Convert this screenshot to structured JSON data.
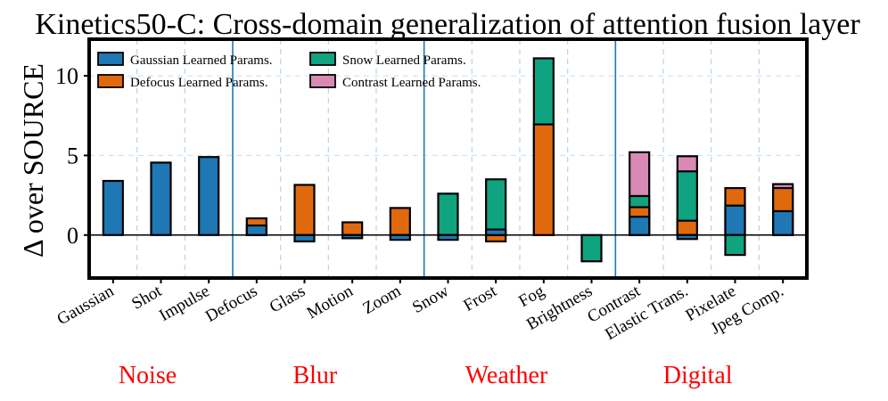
{
  "chart_data": {
    "type": "bar",
    "title": "Kinetics50-C: Cross-domain generalization of attention fusion layer",
    "ylabel": "Δ over SOURCE",
    "ylim": [
      -2.7,
      12.3
    ],
    "yticks": [
      0,
      5,
      10
    ],
    "grid": true,
    "legend_position": "top-left",
    "categories": [
      "Gaussian",
      "Shot",
      "Impulse",
      "Defocus",
      "Glass",
      "Motion",
      "Zoom",
      "Snow",
      "Frost",
      "Fog",
      "Brightness",
      "Contrast",
      "Elastic Trans.",
      "Pixelate",
      "Jpeg Comp."
    ],
    "series": [
      {
        "name": "Gaussian Learned Params.",
        "color": "#1f77b4",
        "values": [
          3.4,
          4.55,
          4.9,
          0.6,
          -0.4,
          -0.2,
          -0.3,
          -0.3,
          0.35,
          null,
          null,
          1.15,
          -0.25,
          1.85,
          1.5
        ]
      },
      {
        "name": "Defocus Learned Params.",
        "color": "#e0690e",
        "values": [
          null,
          null,
          null,
          1.05,
          3.15,
          0.8,
          1.7,
          null,
          -0.4,
          6.95,
          null,
          1.75,
          0.9,
          2.95,
          2.95
        ]
      },
      {
        "name": "Snow Learned Params.",
        "color": "#10a37f",
        "values": [
          null,
          null,
          null,
          null,
          null,
          null,
          null,
          2.6,
          3.5,
          11.1,
          -1.65,
          2.45,
          4.0,
          -1.25,
          null
        ]
      },
      {
        "name": "Contrast Learned Params.",
        "color": "#d88ab5",
        "values": [
          null,
          null,
          null,
          null,
          null,
          null,
          null,
          null,
          null,
          null,
          null,
          5.2,
          4.95,
          null,
          3.2
        ]
      }
    ],
    "groups": [
      {
        "name": "Noise",
        "categories": [
          "Gaussian",
          "Shot",
          "Impulse"
        ]
      },
      {
        "name": "Blur",
        "categories": [
          "Defocus",
          "Glass",
          "Motion",
          "Zoom"
        ]
      },
      {
        "name": "Weather",
        "categories": [
          "Snow",
          "Frost",
          "Fog",
          "Brightness"
        ]
      },
      {
        "name": "Digital",
        "categories": [
          "Contrast",
          "Elastic Trans.",
          "Pixelate",
          "Jpeg Comp."
        ]
      }
    ],
    "group_label_color": "#ff0000"
  }
}
